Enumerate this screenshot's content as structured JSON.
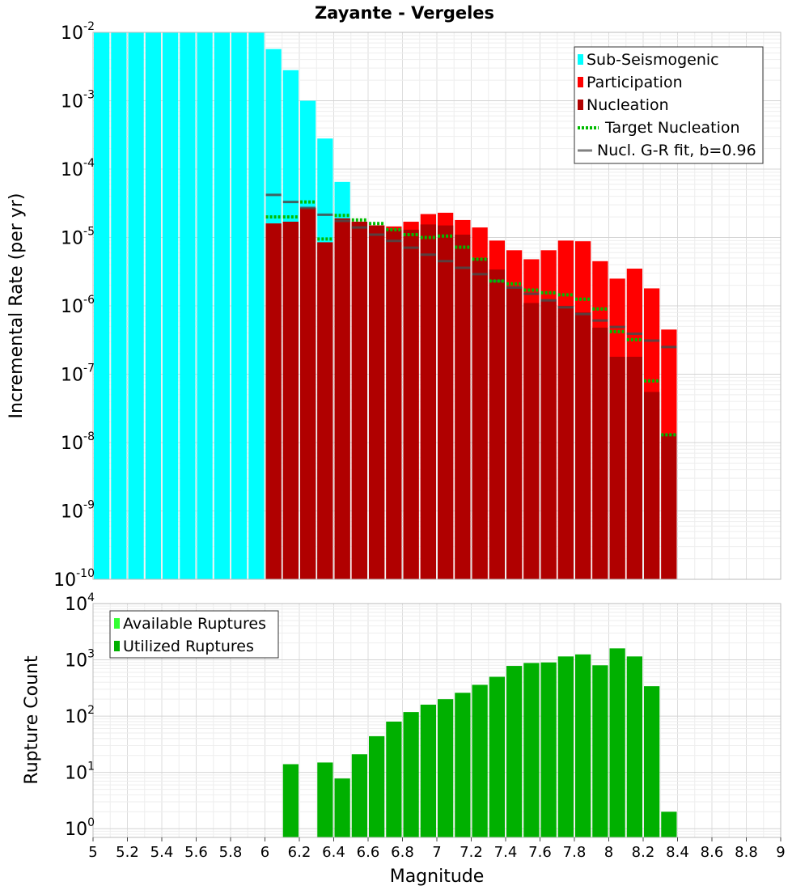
{
  "chart_data": [
    {
      "type": "bar",
      "title": "Zayante - Vergeles",
      "xlabel": "",
      "ylabel": "Incremental Rate (per yr)",
      "yscale": "log",
      "xlim": [
        5,
        9
      ],
      "ylim": [
        1e-10,
        0.01
      ],
      "grid": true,
      "legend_position": "top-right",
      "y_tick_labels": [
        {
          "base": "10",
          "exp": "-10"
        },
        {
          "base": "10",
          "exp": "-9"
        },
        {
          "base": "10",
          "exp": "-8"
        },
        {
          "base": "10",
          "exp": "-7"
        },
        {
          "base": "10",
          "exp": "-6"
        },
        {
          "base": "10",
          "exp": "-5"
        },
        {
          "base": "10",
          "exp": "-4"
        },
        {
          "base": "10",
          "exp": "-3"
        },
        {
          "base": "10",
          "exp": "-2"
        }
      ],
      "legend": [
        {
          "label": "Sub-Seismogenic",
          "color": "#00ffff",
          "style": "bar"
        },
        {
          "label": "Participation",
          "color": "#ff0000",
          "style": "bar"
        },
        {
          "label": "Nucleation",
          "color": "#b00000",
          "style": "bar"
        },
        {
          "label": "Target Nucleation",
          "color": "#00bb00",
          "style": "dotted"
        },
        {
          "label": "Nucl. G-R fit, b=0.96",
          "color": "#808080",
          "style": "line"
        }
      ],
      "bin_width": 0.1,
      "series": [
        {
          "name": "Sub-Seismogenic",
          "color": "#00ffff",
          "x": [
            5.05,
            5.15,
            5.25,
            5.35,
            5.45,
            5.55,
            5.65,
            5.75,
            5.85,
            5.95,
            6.05,
            6.15,
            6.25,
            6.35,
            6.45
          ],
          "values": [
            0.01,
            0.01,
            0.01,
            0.01,
            0.01,
            0.01,
            0.01,
            0.01,
            0.01,
            0.01,
            0.0057,
            0.0028,
            0.001,
            0.00028,
            6.5e-05
          ]
        },
        {
          "name": "Participation",
          "color": "#ff0000",
          "x": [
            6.05,
            6.15,
            6.25,
            6.35,
            6.45,
            6.55,
            6.65,
            6.75,
            6.85,
            6.95,
            7.05,
            7.15,
            7.25,
            7.35,
            7.45,
            7.55,
            7.65,
            7.75,
            7.85,
            7.95,
            8.05,
            8.15,
            8.25,
            8.35
          ],
          "values": [
            1.6e-05,
            1.7e-05,
            2.7e-05,
            8.5e-06,
            1.9e-05,
            1.7e-05,
            1.5e-05,
            1.45e-05,
            1.7e-05,
            2.2e-05,
            2.3e-05,
            1.8e-05,
            1.4e-05,
            9e-06,
            6.5e-06,
            4.8e-06,
            6.5e-06,
            9e-06,
            8.8e-06,
            4.5e-06,
            2.5e-06,
            3.5e-06,
            1.8e-06,
            4.5e-07
          ]
        },
        {
          "name": "Nucleation",
          "color": "#b00000",
          "x": [
            6.05,
            6.15,
            6.25,
            6.35,
            6.45,
            6.55,
            6.65,
            6.75,
            6.85,
            6.95,
            7.05,
            7.15,
            7.25,
            7.35,
            7.45,
            7.55,
            7.65,
            7.75,
            7.85,
            7.95,
            8.05,
            8.15,
            8.25,
            8.35
          ],
          "values": [
            1.6e-05,
            1.7e-05,
            2.7e-05,
            8.5e-06,
            1.9e-05,
            1.7e-05,
            1.5e-05,
            1.3e-05,
            1.3e-05,
            1.55e-05,
            1.5e-05,
            1.1e-05,
            5e-06,
            3.4e-06,
            1.9e-06,
            1.1e-06,
            1.25e-06,
            1e-06,
            8e-07,
            4.8e-07,
            1.8e-07,
            1.8e-07,
            5.5e-08,
            1.35e-08
          ]
        },
        {
          "name": "Target Nucleation",
          "color": "#00bb00",
          "x": [
            6.05,
            6.15,
            6.25,
            6.35,
            6.45,
            6.55,
            6.65,
            6.75,
            6.85,
            6.95,
            7.05,
            7.15,
            7.25,
            7.35,
            7.45,
            7.55,
            7.65,
            7.75,
            7.85,
            7.95,
            8.05,
            8.15,
            8.25,
            8.35
          ],
          "values": [
            2e-05,
            2e-05,
            3.3e-05,
            9.5e-06,
            2.1e-05,
            1.8e-05,
            1.6e-05,
            1.3e-05,
            1.1e-05,
            1e-05,
            1.05e-05,
            7.2e-06,
            4.8e-06,
            2.3e-06,
            2.1e-06,
            1.7e-06,
            1.55e-06,
            1.45e-06,
            1.25e-06,
            9e-07,
            4.2e-07,
            3.2e-07,
            8e-08,
            1.3e-08
          ]
        },
        {
          "name": "Nucl. G-R fit, b=0.96",
          "color": "#808080",
          "x": [
            6.05,
            6.15,
            6.25,
            6.35,
            6.45,
            6.55,
            6.65,
            6.75,
            6.85,
            6.95,
            7.05,
            7.15,
            7.25,
            7.35,
            7.45,
            7.55,
            7.65,
            7.75,
            7.85,
            7.95,
            8.05,
            8.15,
            8.25,
            8.35
          ],
          "values": [
            4.2e-05,
            3.3e-05,
            2.7e-05,
            2.15e-05,
            1.75e-05,
            1.4e-05,
            1.1e-05,
            8.9e-06,
            7.1e-06,
            5.6e-06,
            4.5e-06,
            3.6e-06,
            2.9e-06,
            2.3e-06,
            1.85e-06,
            1.5e-06,
            1.2e-06,
            9.5e-07,
            7.6e-07,
            6.1e-07,
            4.9e-07,
            3.9e-07,
            3.1e-07,
            2.5e-07
          ]
        }
      ]
    },
    {
      "type": "bar",
      "title": "",
      "xlabel": "Magnitude",
      "ylabel": "Rupture Count",
      "yscale": "log",
      "xlim": [
        5,
        9
      ],
      "ylim": [
        0.7,
        10000
      ],
      "grid": true,
      "legend_position": "top-left",
      "x_ticks": [
        5,
        5.2,
        5.4,
        5.6,
        5.8,
        6,
        6.2,
        6.4,
        6.6,
        6.8,
        7,
        7.2,
        7.4,
        7.6,
        7.8,
        8,
        8.2,
        8.4,
        8.6,
        8.8,
        9
      ],
      "x_tick_labels": [
        "5",
        "5.2",
        "5.4",
        "5.6",
        "5.8",
        "6",
        "6.2",
        "6.4",
        "6.6",
        "6.8",
        "7",
        "7.2",
        "7.4",
        "7.6",
        "7.8",
        "8",
        "8.2",
        "8.4",
        "8.6",
        "8.8",
        "9"
      ],
      "y_tick_labels": [
        {
          "base": "10",
          "exp": "0"
        },
        {
          "base": "10",
          "exp": "1"
        },
        {
          "base": "10",
          "exp": "2"
        },
        {
          "base": "10",
          "exp": "3"
        },
        {
          "base": "10",
          "exp": "4"
        }
      ],
      "legend": [
        {
          "label": "Available Ruptures",
          "color": "#33ff33",
          "style": "bar"
        },
        {
          "label": "Utilized Ruptures",
          "color": "#00b000",
          "style": "bar"
        }
      ],
      "bin_width": 0.1,
      "series": [
        {
          "name": "Utilized Ruptures",
          "color": "#00b000",
          "x": [
            6.15,
            6.35,
            6.45,
            6.55,
            6.65,
            6.75,
            6.85,
            6.95,
            7.05,
            7.15,
            7.25,
            7.35,
            7.45,
            7.55,
            7.65,
            7.75,
            7.85,
            7.95,
            8.05,
            8.15,
            8.25,
            8.35
          ],
          "values": [
            14,
            15,
            7.8,
            21,
            44,
            80,
            118,
            160,
            200,
            260,
            360,
            500,
            780,
            880,
            900,
            1150,
            1250,
            800,
            1600,
            1150,
            340,
            2
          ]
        }
      ]
    }
  ]
}
